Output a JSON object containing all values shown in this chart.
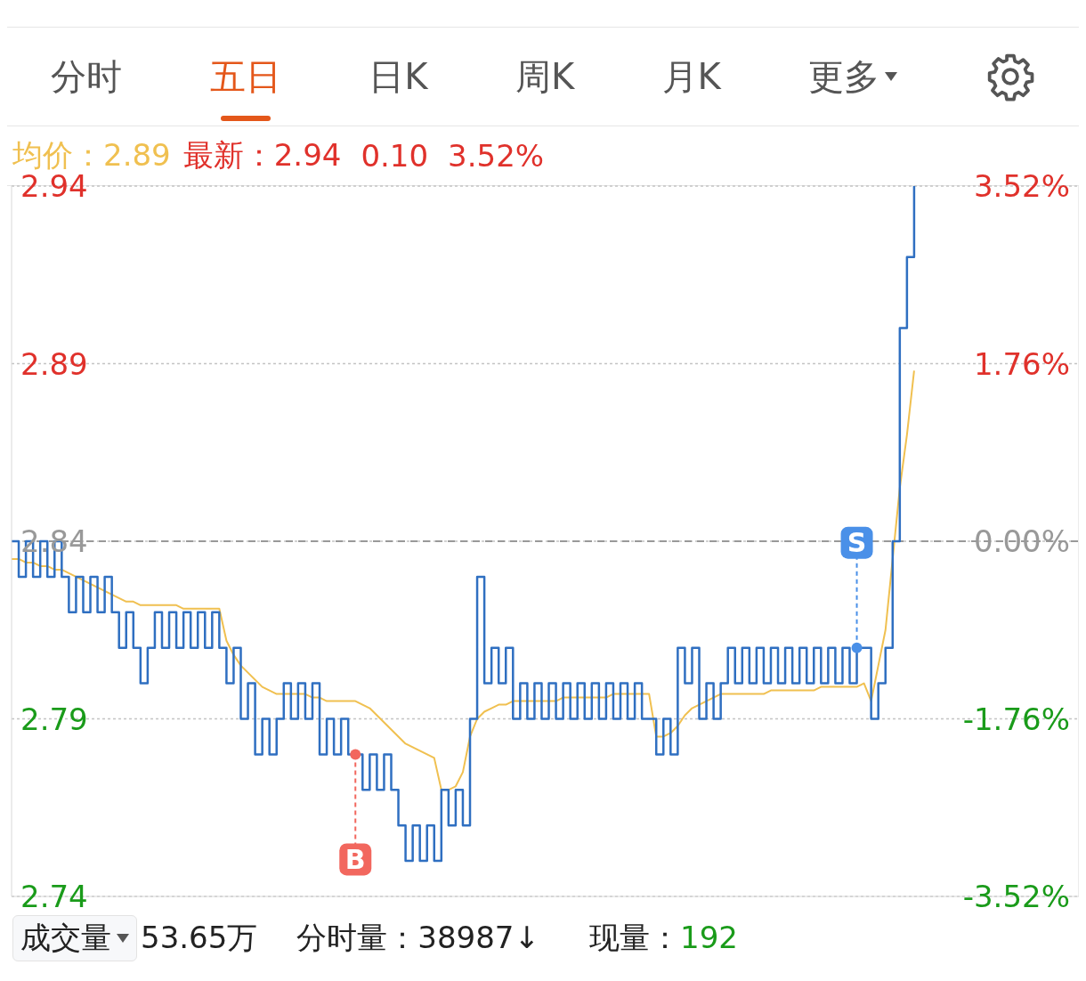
{
  "chart_data": {
    "type": "line",
    "annotations": [
      "分时",
      "五日",
      "日K",
      "周K",
      "月K",
      "更多",
      "均价：2.89",
      "最新：2.94",
      "0.10",
      "3.52%",
      "成交量",
      "53.65万",
      "分时量：38987↓",
      "现量：192"
    ],
    "categories": [
      null,
      null,
      null,
      null,
      null,
      null,
      null,
      null,
      null,
      null,
      null,
      null,
      null,
      null,
      null,
      null,
      null,
      null,
      null,
      null,
      null,
      null,
      null,
      null,
      null,
      null,
      null,
      null,
      null,
      null,
      null,
      null,
      null,
      null,
      null,
      null,
      null,
      null,
      null,
      null,
      null,
      null,
      null,
      null,
      null,
      null,
      null,
      null,
      null,
      null,
      null,
      null,
      null,
      null,
      null,
      null,
      null,
      null,
      null,
      null,
      null,
      null,
      null,
      null,
      null,
      null,
      null,
      null,
      null,
      null,
      null,
      null,
      null,
      null,
      null,
      null,
      null,
      null,
      null,
      null,
      null,
      null,
      null,
      null,
      null,
      null,
      null,
      null,
      null,
      null,
      null,
      null,
      null,
      null,
      null,
      null,
      null,
      null,
      null,
      null,
      null,
      null,
      null,
      null,
      null,
      null,
      null,
      null,
      null,
      null,
      null,
      null,
      null,
      null,
      null,
      null,
      null,
      null,
      null,
      null,
      null,
      null,
      null,
      null,
      null,
      null,
      null,
      null,
      null,
      null,
      null,
      null,
      null,
      null,
      null,
      null,
      null,
      null,
      null,
      null,
      null,
      null,
      null,
      null,
      null,
      null,
      null,
      null,
      null,
      null
    ],
    "ylim": [
      2.74,
      2.94
    ],
    "yticks": [
      2.74,
      2.79,
      2.84,
      2.89,
      2.94
    ],
    "y2lim": [
      -3.52,
      3.52
    ],
    "y2ticks": [
      {
        "value": -3.52,
        "label": "-3.52%"
      },
      {
        "value": -1.76,
        "label": "-1.76%"
      },
      {
        "value": 0,
        "label": "0.00%"
      },
      {
        "value": 1.76,
        "label": "1.76%"
      },
      {
        "value": 3.52,
        "label": "3.52%"
      }
    ],
    "tick_labels": "y",
    "grid": "y",
    "ref_lines": [
      {
        "axis": "y",
        "value": 2.84,
        "color": "#999999",
        "line_style": "dashed"
      }
    ],
    "series": [
      {
        "type": "step",
        "color": "#2f6fc1",
        "values": [
          2.84,
          2.83,
          2.84,
          2.83,
          2.84,
          2.83,
          2.84,
          2.83,
          2.82,
          2.83,
          2.82,
          2.83,
          2.82,
          2.83,
          2.82,
          2.81,
          2.82,
          2.81,
          2.8,
          2.81,
          2.82,
          2.81,
          2.82,
          2.81,
          2.82,
          2.81,
          2.82,
          2.81,
          2.82,
          2.81,
          2.8,
          2.81,
          2.79,
          2.8,
          2.78,
          2.79,
          2.78,
          2.79,
          2.8,
          2.79,
          2.8,
          2.79,
          2.8,
          2.78,
          2.79,
          2.78,
          2.79,
          2.78,
          2.78,
          2.77,
          2.78,
          2.77,
          2.78,
          2.77,
          2.76,
          2.75,
          2.76,
          2.75,
          2.76,
          2.75,
          2.77,
          2.76,
          2.77,
          2.76,
          2.79,
          2.83,
          2.8,
          2.81,
          2.8,
          2.81,
          2.79,
          2.8,
          2.79,
          2.8,
          2.79,
          2.8,
          2.79,
          2.8,
          2.79,
          2.8,
          2.79,
          2.8,
          2.79,
          2.8,
          2.79,
          2.8,
          2.79,
          2.8,
          2.79,
          2.79,
          2.78,
          2.79,
          2.78,
          2.81,
          2.8,
          2.81,
          2.79,
          2.8,
          2.79,
          2.8,
          2.81,
          2.8,
          2.81,
          2.8,
          2.81,
          2.8,
          2.81,
          2.8,
          2.81,
          2.8,
          2.81,
          2.8,
          2.81,
          2.8,
          2.81,
          2.8,
          2.81,
          2.8,
          2.81,
          2.81,
          2.79,
          2.8,
          2.81,
          2.84,
          2.9,
          2.92,
          2.94,
          null,
          null,
          null,
          null,
          null,
          null,
          null,
          null,
          null,
          null,
          null,
          null,
          null,
          null,
          null,
          null,
          null,
          null,
          null,
          null,
          null,
          null,
          null
        ]
      },
      {
        "type": "line",
        "color": "#f0c050",
        "values": [
          2.835,
          2.835,
          2.834,
          2.834,
          2.833,
          2.833,
          2.832,
          2.832,
          2.831,
          2.83,
          2.829,
          2.828,
          2.827,
          2.826,
          2.825,
          2.824,
          2.823,
          2.823,
          2.822,
          2.822,
          2.822,
          2.822,
          2.822,
          2.822,
          2.821,
          2.821,
          2.821,
          2.821,
          2.821,
          2.821,
          2.812,
          2.808,
          2.805,
          2.803,
          2.801,
          2.799,
          2.798,
          2.797,
          2.797,
          2.797,
          2.797,
          2.797,
          2.796,
          2.796,
          2.795,
          2.795,
          2.795,
          2.795,
          2.795,
          2.794,
          2.793,
          2.791,
          2.789,
          2.787,
          2.785,
          2.783,
          2.782,
          2.781,
          2.78,
          2.779,
          2.77,
          2.77,
          2.771,
          2.775,
          2.785,
          2.79,
          2.792,
          2.793,
          2.794,
          2.794,
          2.795,
          2.795,
          2.795,
          2.795,
          2.795,
          2.795,
          2.795,
          2.796,
          2.796,
          2.796,
          2.796,
          2.796,
          2.796,
          2.796,
          2.797,
          2.797,
          2.797,
          2.797,
          2.797,
          2.797,
          2.785,
          2.785,
          2.786,
          2.788,
          2.791,
          2.793,
          2.794,
          2.795,
          2.796,
          2.797,
          2.797,
          2.797,
          2.797,
          2.797,
          2.797,
          2.797,
          2.798,
          2.798,
          2.798,
          2.798,
          2.798,
          2.798,
          2.798,
          2.799,
          2.799,
          2.799,
          2.799,
          2.799,
          2.799,
          2.8,
          2.795,
          2.805,
          2.815,
          2.835,
          2.855,
          2.87,
          2.888,
          null,
          null,
          null,
          null,
          null,
          null,
          null,
          null,
          null,
          null,
          null,
          null,
          null,
          null,
          null,
          null,
          null,
          null,
          null,
          null,
          null,
          null,
          null
        ]
      },
      {
        "type": "scatter",
        "color": "#f2675e",
        "values": [
          null,
          null,
          null,
          null,
          null,
          null,
          null,
          null,
          null,
          null,
          null,
          null,
          null,
          null,
          null,
          null,
          null,
          null,
          null,
          null,
          null,
          null,
          null,
          null,
          null,
          null,
          null,
          null,
          null,
          null,
          null,
          null,
          null,
          null,
          null,
          null,
          null,
          null,
          null,
          null,
          null,
          null,
          null,
          null,
          null,
          null,
          null,
          null,
          2.78,
          null,
          null,
          null,
          null,
          null,
          null,
          null,
          null,
          null,
          null,
          null,
          null,
          null,
          null,
          null,
          null,
          null,
          null,
          null,
          null,
          null,
          null,
          null,
          null,
          null,
          null,
          null,
          null,
          null,
          null,
          null,
          null,
          null,
          null,
          null,
          null,
          null,
          null,
          null,
          null,
          null,
          null,
          null,
          null,
          null,
          null,
          null,
          null,
          null,
          null,
          null,
          null,
          null,
          null,
          null,
          null,
          null,
          null,
          null,
          null,
          null,
          null,
          null,
          null,
          null,
          null,
          null,
          null,
          null,
          null,
          null,
          null,
          null,
          null,
          null,
          null,
          null,
          null,
          null,
          null,
          null,
          null,
          null,
          null,
          null,
          null,
          null,
          null,
          null,
          null,
          null,
          null,
          null,
          null,
          null,
          null,
          null,
          null,
          null,
          null,
          null
        ],
        "value_labels": [
          null,
          null,
          null,
          null,
          null,
          null,
          null,
          null,
          null,
          null,
          null,
          null,
          null,
          null,
          null,
          null,
          null,
          null,
          null,
          null,
          null,
          null,
          null,
          null,
          null,
          null,
          null,
          null,
          null,
          null,
          null,
          null,
          null,
          null,
          null,
          null,
          null,
          null,
          null,
          null,
          null,
          null,
          null,
          null,
          null,
          null,
          null,
          null,
          "B",
          null,
          null,
          null,
          null,
          null,
          null,
          null,
          null,
          null,
          null,
          null,
          null,
          null,
          null,
          null,
          null,
          null,
          null,
          null,
          null,
          null,
          null,
          null,
          null,
          null,
          null,
          null,
          null,
          null,
          null,
          null,
          null,
          null,
          null,
          null,
          null,
          null,
          null,
          null,
          null,
          null,
          null,
          null,
          null,
          null,
          null,
          null,
          null,
          null,
          null,
          null,
          null,
          null,
          null,
          null,
          null,
          null,
          null,
          null,
          null,
          null,
          null,
          null,
          null,
          null,
          null,
          null,
          null,
          null,
          null,
          null,
          null,
          null,
          null,
          null,
          null,
          null,
          null,
          null,
          null,
          null,
          null,
          null,
          null,
          null,
          null,
          null,
          null,
          null,
          null,
          null,
          null,
          null,
          null,
          null,
          null,
          null,
          null,
          null,
          null,
          null
        ]
      },
      {
        "type": "scatter",
        "color": "#4a90e8",
        "values": [
          null,
          null,
          null,
          null,
          null,
          null,
          null,
          null,
          null,
          null,
          null,
          null,
          null,
          null,
          null,
          null,
          null,
          null,
          null,
          null,
          null,
          null,
          null,
          null,
          null,
          null,
          null,
          null,
          null,
          null,
          null,
          null,
          null,
          null,
          null,
          null,
          null,
          null,
          null,
          null,
          null,
          null,
          null,
          null,
          null,
          null,
          null,
          null,
          null,
          null,
          null,
          null,
          null,
          null,
          null,
          null,
          null,
          null,
          null,
          null,
          null,
          null,
          null,
          null,
          null,
          null,
          null,
          null,
          null,
          null,
          null,
          null,
          null,
          null,
          null,
          null,
          null,
          null,
          null,
          null,
          null,
          null,
          null,
          null,
          null,
          null,
          null,
          null,
          null,
          null,
          null,
          null,
          null,
          null,
          null,
          null,
          null,
          null,
          null,
          null,
          null,
          null,
          null,
          null,
          null,
          null,
          null,
          null,
          null,
          null,
          null,
          null,
          null,
          null,
          null,
          null,
          null,
          null,
          2.81,
          null,
          null,
          null,
          null,
          null,
          null,
          null,
          null,
          null,
          null,
          null,
          null,
          null,
          null,
          null,
          null,
          null,
          null,
          null,
          null,
          null,
          null,
          null,
          null,
          null,
          null,
          null,
          null,
          null,
          null,
          null
        ],
        "value_labels": [
          null,
          null,
          null,
          null,
          null,
          null,
          null,
          null,
          null,
          null,
          null,
          null,
          null,
          null,
          null,
          null,
          null,
          null,
          null,
          null,
          null,
          null,
          null,
          null,
          null,
          null,
          null,
          null,
          null,
          null,
          null,
          null,
          null,
          null,
          null,
          null,
          null,
          null,
          null,
          null,
          null,
          null,
          null,
          null,
          null,
          null,
          null,
          null,
          null,
          null,
          null,
          null,
          null,
          null,
          null,
          null,
          null,
          null,
          null,
          null,
          null,
          null,
          null,
          null,
          null,
          null,
          null,
          null,
          null,
          null,
          null,
          null,
          null,
          null,
          null,
          null,
          null,
          null,
          null,
          null,
          null,
          null,
          null,
          null,
          null,
          null,
          null,
          null,
          null,
          null,
          null,
          null,
          null,
          null,
          null,
          null,
          null,
          null,
          null,
          null,
          null,
          null,
          null,
          null,
          null,
          null,
          null,
          null,
          null,
          null,
          null,
          null,
          null,
          null,
          null,
          null,
          null,
          null,
          "S",
          null,
          null,
          null,
          null,
          null,
          null,
          null,
          null,
          null,
          null,
          null,
          null,
          null,
          null,
          null,
          null,
          null,
          null,
          null,
          null,
          null,
          null,
          null,
          null,
          null,
          null,
          null,
          null,
          null,
          null,
          null
        ]
      }
    ]
  }
}
